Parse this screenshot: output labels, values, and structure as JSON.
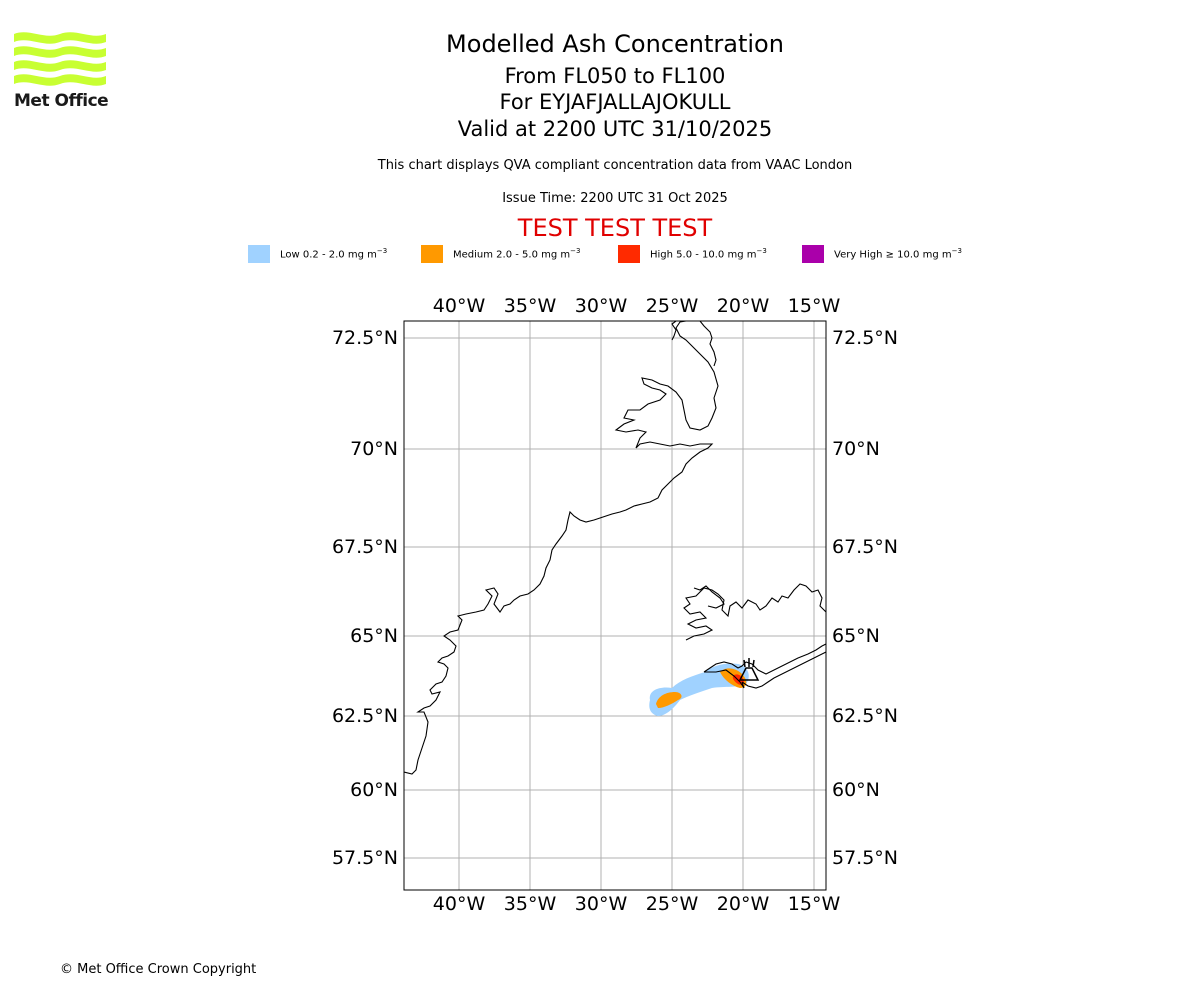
{
  "logo": {
    "text": "Met Office",
    "brand_color": "#c8ff32"
  },
  "header": {
    "title": "Modelled Ash Concentration",
    "levels": "From FL050 to FL100",
    "volcano": "For EYJAFJALLAJOKULL",
    "valid": "Valid at 2200 UTC 31/10/2025",
    "subtitle": "This chart displays QVA compliant concentration data from VAAC London",
    "issue_time": "Issue Time: 2200 UTC 31 Oct 2025",
    "test_banner": "TEST TEST TEST"
  },
  "legend": {
    "items": [
      {
        "label": "Low 0.2 - 2.0 mg m",
        "unit_exp": "−3",
        "color": "#a0d2ff"
      },
      {
        "label": "Medium 2.0 - 5.0 mg m",
        "unit_exp": "−3",
        "color": "#ff9900"
      },
      {
        "label": "High 5.0 - 10.0 mg m",
        "unit_exp": "−3",
        "color": "#ff2a00"
      },
      {
        "label": "Very High  ≥  10.0 mg m",
        "unit_exp": "−3",
        "color": "#aa00aa"
      }
    ]
  },
  "map": {
    "lon_labels": [
      "40°W",
      "35°W",
      "30°W",
      "25°W",
      "20°W",
      "15°W"
    ],
    "lat_labels": [
      "72.5°N",
      "70°N",
      "67.5°N",
      "65°N",
      "62.5°N",
      "60°N",
      "57.5°N"
    ],
    "volcano_symbol": "volcano-icon"
  },
  "footer": {
    "copyright": "© Met Office Crown Copyright"
  }
}
